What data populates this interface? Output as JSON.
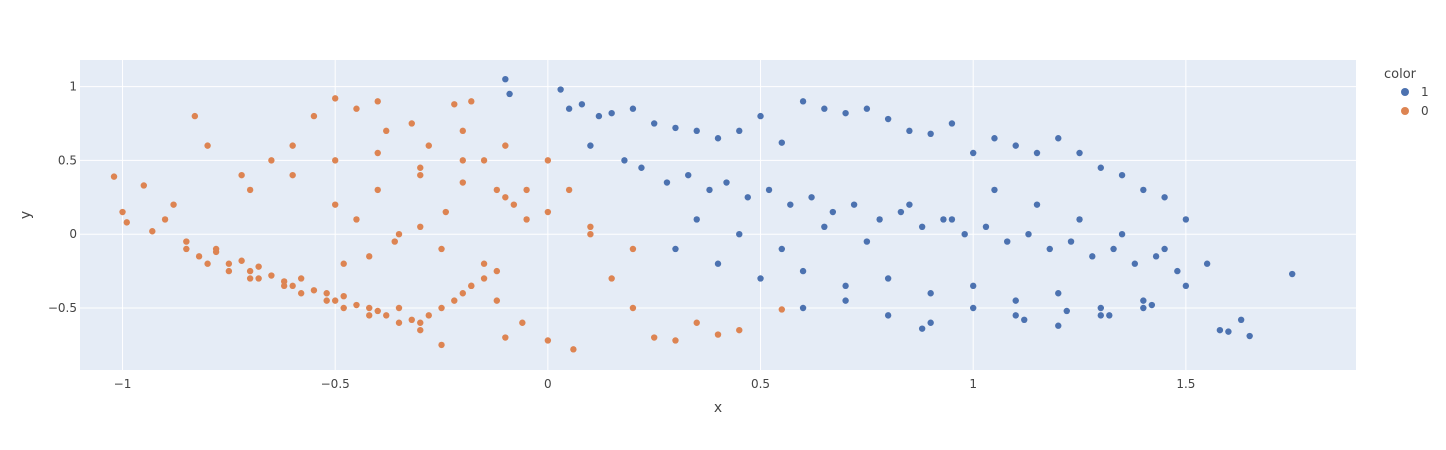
{
  "chart_data": {
    "type": "scatter",
    "title": "",
    "xlabel": "x",
    "ylabel": "y",
    "xlim": [
      -1.1,
      1.9
    ],
    "ylim": [
      -0.92,
      1.18
    ],
    "xticks": [
      -1,
      -0.5,
      0,
      0.5,
      1,
      1.5
    ],
    "xtick_labels": [
      "−1",
      "−0.5",
      "0",
      "0.5",
      "1",
      "1.5"
    ],
    "yticks": [
      -0.5,
      0,
      0.5,
      1
    ],
    "ytick_labels": [
      "−0.5",
      "0",
      "0.5",
      "1"
    ],
    "grid": true,
    "plot_background": "#E5ECF6",
    "legend": {
      "title": "color",
      "placement": "top-right"
    },
    "series": [
      {
        "name": "1",
        "color": "#4C72B0",
        "x": [
          -0.1,
          -0.09,
          0.03,
          0.05,
          0.08,
          0.12,
          0.15,
          0.2,
          0.25,
          0.3,
          0.35,
          0.4,
          0.45,
          0.5,
          0.55,
          0.6,
          0.65,
          0.7,
          0.75,
          0.8,
          0.85,
          0.9,
          0.95,
          1.0,
          1.05,
          1.1,
          1.15,
          1.2,
          1.25,
          1.3,
          1.35,
          1.4,
          1.45,
          1.5,
          1.55,
          1.58,
          1.6,
          1.63,
          1.65,
          1.75,
          0.1,
          0.18,
          0.22,
          0.28,
          0.33,
          0.38,
          0.42,
          0.47,
          0.52,
          0.57,
          0.62,
          0.67,
          0.72,
          0.78,
          0.83,
          0.88,
          0.93,
          0.98,
          1.03,
          1.08,
          1.13,
          1.18,
          1.23,
          1.28,
          1.33,
          1.38,
          1.43,
          1.48,
          0.3,
          0.4,
          0.5,
          0.6,
          0.7,
          0.8,
          0.9,
          1.0,
          1.1,
          1.2,
          1.3,
          1.4,
          1.5,
          0.35,
          0.45,
          0.55,
          0.65,
          0.75,
          0.85,
          0.95,
          1.05,
          1.15,
          1.25,
          1.35,
          1.45,
          0.6,
          0.7,
          0.8,
          0.9,
          1.0,
          1.1,
          1.2,
          1.3,
          1.4,
          0.88,
          1.12,
          1.22,
          1.32,
          1.42
        ],
        "y": [
          1.05,
          0.95,
          0.98,
          0.85,
          0.88,
          0.8,
          0.82,
          0.85,
          0.75,
          0.72,
          0.7,
          0.65,
          0.7,
          0.8,
          0.62,
          0.9,
          0.85,
          0.82,
          0.85,
          0.78,
          0.7,
          0.68,
          0.75,
          0.55,
          0.65,
          0.6,
          0.55,
          0.65,
          0.55,
          0.45,
          0.4,
          0.3,
          0.25,
          0.1,
          -0.2,
          -0.65,
          -0.66,
          -0.58,
          -0.69,
          -0.27,
          0.6,
          0.5,
          0.45,
          0.35,
          0.4,
          0.3,
          0.35,
          0.25,
          0.3,
          0.2,
          0.25,
          0.15,
          0.2,
          0.1,
          0.15,
          0.05,
          0.1,
          0.0,
          0.05,
          -0.05,
          0.0,
          -0.1,
          -0.05,
          -0.15,
          -0.1,
          -0.2,
          -0.15,
          -0.25,
          -0.1,
          -0.2,
          -0.3,
          -0.25,
          -0.35,
          -0.3,
          -0.4,
          -0.35,
          -0.45,
          -0.4,
          -0.5,
          -0.45,
          -0.35,
          0.1,
          0.0,
          -0.1,
          0.05,
          -0.05,
          0.2,
          0.1,
          0.3,
          0.2,
          0.1,
          0.0,
          -0.1,
          -0.5,
          -0.45,
          -0.55,
          -0.6,
          -0.5,
          -0.55,
          -0.62,
          -0.55,
          -0.5,
          -0.64,
          -0.58,
          -0.52,
          -0.55,
          -0.48
        ]
      },
      {
        "name": "0",
        "color": "#DD8452",
        "x": [
          -1.02,
          -1.0,
          -0.99,
          -0.95,
          -0.93,
          -0.9,
          -0.88,
          -0.85,
          -0.83,
          -0.8,
          -0.78,
          -0.75,
          -0.72,
          -0.7,
          -0.68,
          -0.65,
          -0.62,
          -0.6,
          -0.58,
          -0.55,
          -0.52,
          -0.5,
          -0.48,
          -0.45,
          -0.42,
          -0.4,
          -0.38,
          -0.35,
          -0.32,
          -0.3,
          -0.28,
          -0.25,
          -0.22,
          -0.2,
          -0.18,
          -0.15,
          -0.12,
          -0.1,
          -0.08,
          -0.05,
          -0.85,
          -0.82,
          -0.8,
          -0.78,
          -0.75,
          -0.72,
          -0.7,
          -0.68,
          -0.65,
          -0.62,
          -0.6,
          -0.58,
          -0.55,
          -0.52,
          -0.5,
          -0.48,
          -0.45,
          -0.42,
          -0.4,
          -0.38,
          -0.35,
          -0.32,
          -0.3,
          -0.28,
          -0.25,
          -0.22,
          -0.2,
          -0.18,
          -0.15,
          -0.12,
          -0.5,
          -0.45,
          -0.4,
          -0.35,
          -0.3,
          -0.25,
          -0.2,
          -0.15,
          -0.1,
          -0.05,
          0.0,
          0.05,
          0.1,
          0.15,
          0.2,
          0.25,
          0.3,
          0.35,
          0.4,
          0.45,
          0.55,
          -0.7,
          -0.6,
          -0.5,
          -0.4,
          -0.3,
          -0.2,
          -0.1,
          0.0,
          0.1,
          0.2,
          -0.48,
          -0.42,
          -0.36,
          -0.3,
          -0.24,
          -0.18,
          -0.12,
          -0.06,
          0.0,
          0.06
        ],
        "y": [
          0.39,
          0.15,
          0.08,
          0.33,
          0.02,
          0.1,
          0.2,
          -0.05,
          0.8,
          0.6,
          -0.1,
          -0.2,
          0.4,
          -0.25,
          -0.3,
          0.5,
          -0.35,
          0.6,
          -0.4,
          0.8,
          -0.45,
          0.92,
          -0.5,
          0.85,
          -0.55,
          0.9,
          0.7,
          -0.6,
          0.75,
          -0.65,
          0.6,
          -0.75,
          0.88,
          0.7,
          0.9,
          0.5,
          0.3,
          -0.7,
          0.2,
          0.1,
          -0.1,
          -0.15,
          -0.2,
          -0.12,
          -0.25,
          -0.18,
          -0.3,
          -0.22,
          -0.28,
          -0.32,
          -0.35,
          -0.3,
          -0.38,
          -0.4,
          -0.45,
          -0.42,
          -0.48,
          -0.5,
          -0.52,
          -0.55,
          -0.5,
          -0.58,
          -0.6,
          -0.55,
          -0.5,
          -0.45,
          -0.4,
          -0.35,
          -0.3,
          -0.25,
          0.2,
          0.1,
          0.3,
          0.0,
          0.4,
          -0.1,
          0.5,
          -0.2,
          0.6,
          0.3,
          0.5,
          0.3,
          0.0,
          -0.3,
          -0.5,
          -0.7,
          -0.72,
          -0.6,
          -0.68,
          -0.65,
          -0.51,
          0.3,
          0.4,
          0.5,
          0.55,
          0.45,
          0.35,
          0.25,
          0.15,
          0.05,
          -0.1,
          -0.2,
          -0.15,
          -0.05,
          0.05,
          0.15,
          -0.35,
          -0.45,
          -0.6,
          -0.72,
          -0.78
        ]
      }
    ]
  }
}
